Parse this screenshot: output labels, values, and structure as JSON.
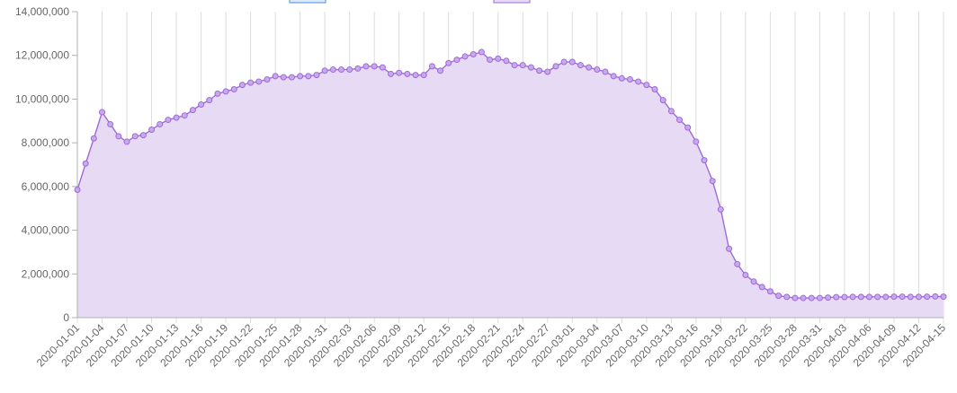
{
  "chart_data": {
    "type": "area",
    "title": "",
    "xlabel": "",
    "ylabel": "",
    "ylim": [
      0,
      14000000
    ],
    "grid": "vertical lines on x axis",
    "legend": "top",
    "series_color": "#9d6bd8",
    "fill_color": "#e7daf5",
    "point_fill": "#c9a8ee",
    "legend_items": [
      {
        "name": "",
        "color": "#4e8fd8",
        "fill": "#dbe9f8"
      },
      {
        "name": "",
        "color": "#9d6bd8",
        "fill": "#e7daf5"
      }
    ],
    "yticks": [
      "0",
      "2,000,000",
      "4,000,000",
      "6,000,000",
      "8,000,000",
      "10,000,000",
      "12,000,000",
      "14,000,000"
    ],
    "xtick_labels": [
      "2020-01-01",
      "2020-01-04",
      "2020-01-07",
      "2020-01-10",
      "2020-01-13",
      "2020-01-16",
      "2020-01-19",
      "2020-01-22",
      "2020-01-25",
      "2020-01-28",
      "2020-01-31",
      "2020-02-03",
      "2020-02-06",
      "2020-02-09",
      "2020-02-12",
      "2020-02-15",
      "2020-02-18",
      "2020-02-21",
      "2020-02-24",
      "2020-02-27",
      "2020-03-01",
      "2020-03-04",
      "2020-03-07",
      "2020-03-10",
      "2020-03-13",
      "2020-03-16",
      "2020-03-19",
      "2020-03-22",
      "2020-03-25",
      "2020-03-28",
      "2020-03-31",
      "2020-04-03",
      "2020-04-06",
      "2020-04-09",
      "2020-04-12",
      "2020-04-15"
    ],
    "x": [
      "2020-01-01",
      "2020-01-02",
      "2020-01-03",
      "2020-01-04",
      "2020-01-05",
      "2020-01-06",
      "2020-01-07",
      "2020-01-08",
      "2020-01-09",
      "2020-01-10",
      "2020-01-11",
      "2020-01-12",
      "2020-01-13",
      "2020-01-14",
      "2020-01-15",
      "2020-01-16",
      "2020-01-17",
      "2020-01-18",
      "2020-01-19",
      "2020-01-20",
      "2020-01-21",
      "2020-01-22",
      "2020-01-23",
      "2020-01-24",
      "2020-01-25",
      "2020-01-26",
      "2020-01-27",
      "2020-01-28",
      "2020-01-29",
      "2020-01-30",
      "2020-01-31",
      "2020-02-01",
      "2020-02-02",
      "2020-02-03",
      "2020-02-04",
      "2020-02-05",
      "2020-02-06",
      "2020-02-07",
      "2020-02-08",
      "2020-02-09",
      "2020-02-10",
      "2020-02-11",
      "2020-02-12",
      "2020-02-13",
      "2020-02-14",
      "2020-02-15",
      "2020-02-16",
      "2020-02-17",
      "2020-02-18",
      "2020-02-19",
      "2020-02-20",
      "2020-02-21",
      "2020-02-22",
      "2020-02-23",
      "2020-02-24",
      "2020-02-25",
      "2020-02-26",
      "2020-02-27",
      "2020-02-28",
      "2020-02-29",
      "2020-03-01",
      "2020-03-02",
      "2020-03-03",
      "2020-03-04",
      "2020-03-05",
      "2020-03-06",
      "2020-03-07",
      "2020-03-08",
      "2020-03-09",
      "2020-03-10",
      "2020-03-11",
      "2020-03-12",
      "2020-03-13",
      "2020-03-14",
      "2020-03-15",
      "2020-03-16",
      "2020-03-17",
      "2020-03-18",
      "2020-03-19",
      "2020-03-20",
      "2020-03-21",
      "2020-03-22",
      "2020-03-23",
      "2020-03-24",
      "2020-03-25",
      "2020-03-26",
      "2020-03-27",
      "2020-03-28",
      "2020-03-29",
      "2020-03-30",
      "2020-03-31",
      "2020-04-01",
      "2020-04-02",
      "2020-04-03",
      "2020-04-04",
      "2020-04-05",
      "2020-04-06",
      "2020-04-07",
      "2020-04-08",
      "2020-04-09",
      "2020-04-10",
      "2020-04-11",
      "2020-04-12",
      "2020-04-13",
      "2020-04-14",
      "2020-04-15"
    ],
    "series": [
      {
        "name": "",
        "values": [
          5850000,
          7050000,
          8200000,
          9400000,
          8850000,
          8300000,
          8050000,
          8300000,
          8350000,
          8600000,
          8850000,
          9050000,
          9150000,
          9250000,
          9500000,
          9750000,
          9950000,
          10250000,
          10350000,
          10450000,
          10650000,
          10750000,
          10800000,
          10900000,
          11050000,
          11000000,
          11000000,
          11050000,
          11050000,
          11100000,
          11300000,
          11350000,
          11350000,
          11350000,
          11400000,
          11500000,
          11500000,
          11450000,
          11150000,
          11200000,
          11150000,
          11100000,
          11100000,
          11500000,
          11300000,
          11650000,
          11800000,
          11950000,
          12050000,
          12150000,
          11800000,
          11850000,
          11750000,
          11550000,
          11550000,
          11450000,
          11300000,
          11250000,
          11500000,
          11700000,
          11700000,
          11550000,
          11450000,
          11350000,
          11250000,
          11050000,
          10950000,
          10900000,
          10800000,
          10650000,
          10450000,
          9950000,
          9450000,
          9050000,
          8700000,
          8050000,
          7200000,
          6250000,
          4950000,
          3150000,
          2450000,
          1950000,
          1650000,
          1400000,
          1200000,
          1000000,
          950000,
          900000,
          900000,
          900000,
          900000,
          920000,
          940000,
          940000,
          950000,
          950000,
          950000,
          950000,
          950000,
          960000,
          960000,
          950000,
          950000,
          960000,
          970000,
          960000
        ]
      }
    ]
  }
}
